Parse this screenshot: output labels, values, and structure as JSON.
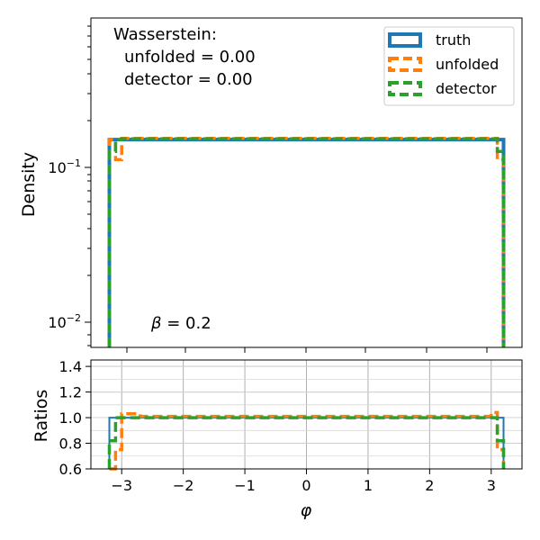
{
  "chart_data": [
    {
      "type": "line",
      "name": "main-panel",
      "ylabel": "Density",
      "yscale": "log",
      "xlim": [
        -3.5,
        3.5
      ],
      "ylim": [
        0.007,
        0.95
      ],
      "y_ticks": [
        {
          "value": 0.1,
          "label": "10^-1"
        },
        {
          "value": 0.01,
          "label": "10^-2"
        }
      ],
      "grid": false,
      "legend_position": "top-right",
      "annotations": {
        "wasserstein_title": "Wasserstein:",
        "wasserstein_unfolded": "unfolded = 0.00",
        "wasserstein_detector": "detector = 0.00",
        "beta_symbol": "β",
        "beta_value": " = 0.2"
      },
      "series": [
        {
          "name": "truth",
          "color": "#1f77b4",
          "style": "solid",
          "edges": [
            -3.2,
            3.2
          ],
          "values": [
            0.155
          ]
        },
        {
          "name": "unfolded",
          "color": "#ff7f0e",
          "style": "dashed",
          "edges": [
            -3.2,
            -3.1,
            -3.0,
            2.85,
            3.0,
            3.1,
            3.2
          ],
          "values": [
            0.155,
            0.115,
            0.158,
            0.158,
            0.158,
            0.115
          ]
        },
        {
          "name": "detector",
          "color": "#2ca02c",
          "style": "dashed",
          "edges": [
            -3.2,
            -3.1,
            -3.0,
            3.0,
            3.1,
            3.2
          ],
          "values": [
            0.13,
            0.155,
            0.157,
            0.157,
            0.13
          ]
        }
      ]
    },
    {
      "type": "line",
      "name": "ratio-panel",
      "xlabel": "φ",
      "ylabel": "Ratios",
      "xlim": [
        -3.5,
        3.5
      ],
      "ylim": [
        0.6,
        1.45
      ],
      "x_ticks": [
        -3,
        -2,
        -1,
        0,
        1,
        2,
        3
      ],
      "x_tick_labels": [
        "−3",
        "−2",
        "−1",
        "0",
        "1",
        "2",
        "3"
      ],
      "y_ticks": [
        0.6,
        0.8,
        1.0,
        1.2,
        1.4
      ],
      "y_tick_labels": [
        "0.6",
        "0.8",
        "1.0",
        "1.2",
        "1.4"
      ],
      "grid": true,
      "series": [
        {
          "name": "truth",
          "color": "#1f77b4",
          "style": "solid",
          "edges": [
            -3.2,
            3.2
          ],
          "values": [
            1.0
          ]
        },
        {
          "name": "unfolded",
          "color": "#ff7f0e",
          "style": "dashed",
          "edges": [
            -3.2,
            -3.1,
            -3.0,
            -2.7,
            2.8,
            3.0,
            3.1,
            3.2
          ],
          "values": [
            0.6,
            0.75,
            1.03,
            1.01,
            1.01,
            1.04,
            0.75
          ]
        },
        {
          "name": "detector",
          "color": "#2ca02c",
          "style": "dashed",
          "edges": [
            -3.2,
            -3.1,
            3.1,
            3.2
          ],
          "values": [
            0.82,
            1.0,
            0.82
          ]
        }
      ]
    }
  ]
}
